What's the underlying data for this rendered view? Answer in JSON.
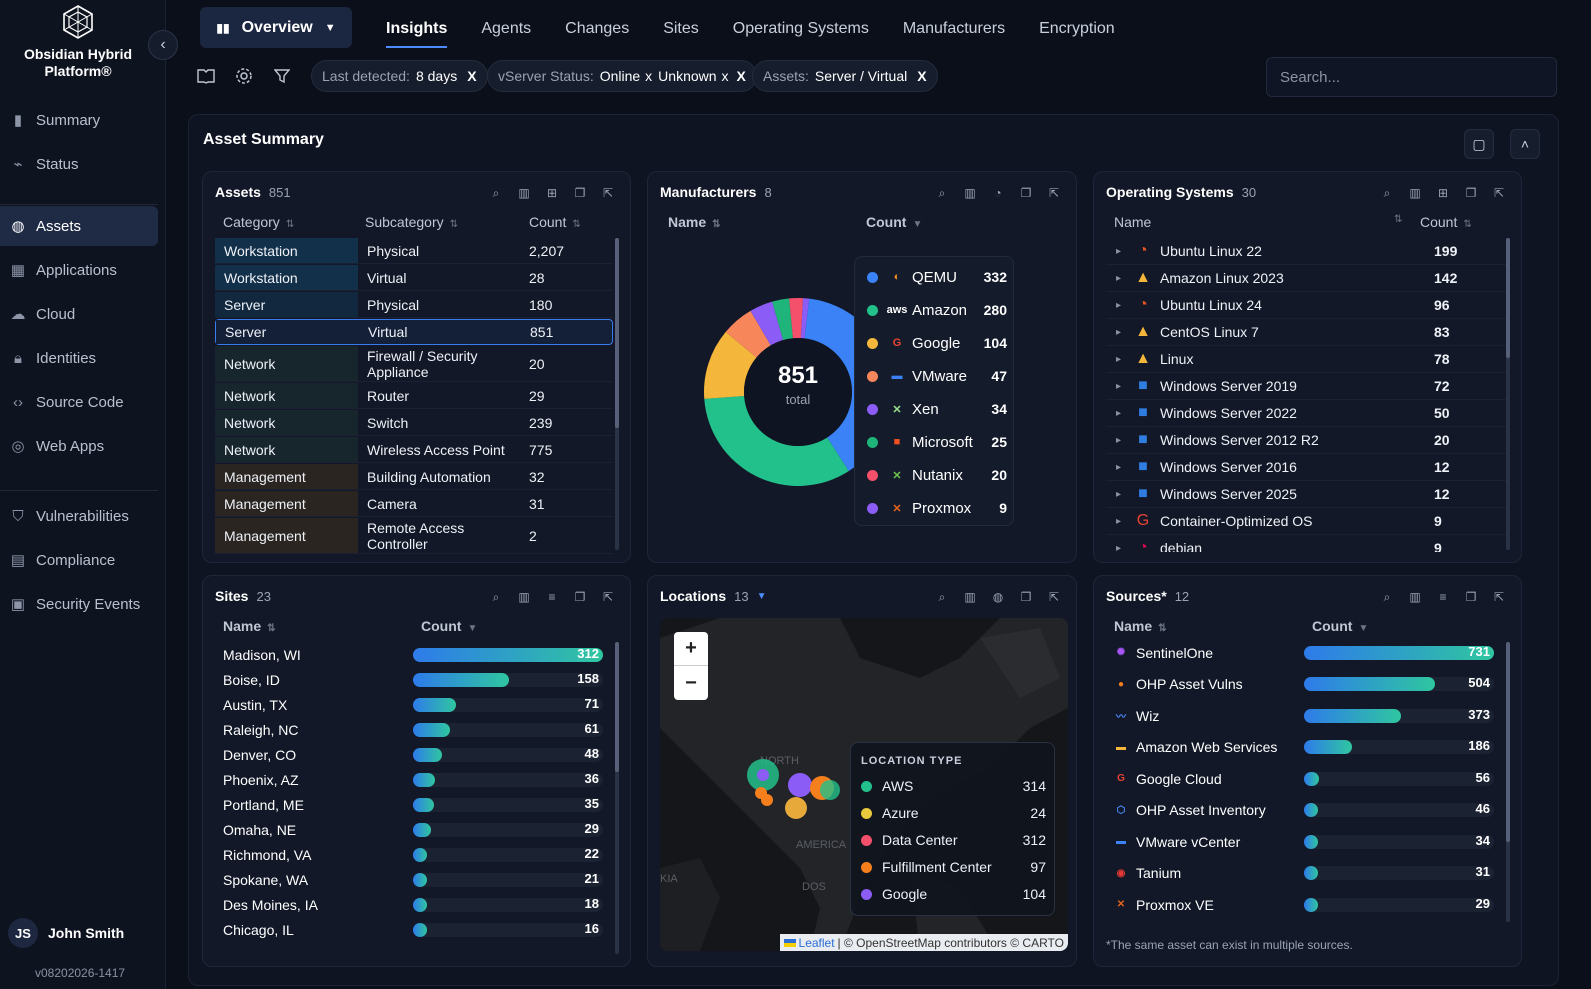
{
  "brand": {
    "name_line1": "Obsidian Hybrid",
    "name_line2": "Platform®"
  },
  "nav": {
    "top": [
      {
        "id": "summary",
        "label": "Summary",
        "icon": "bar-chart-icon"
      },
      {
        "id": "status",
        "label": "Status",
        "icon": "pulse-icon"
      }
    ],
    "middle": [
      {
        "id": "assets",
        "label": "Assets",
        "icon": "globe-icon",
        "active": true
      },
      {
        "id": "applications",
        "label": "Applications",
        "icon": "grid-icon"
      },
      {
        "id": "cloud",
        "label": "Cloud",
        "icon": "cloud-icon"
      },
      {
        "id": "identities",
        "label": "Identities",
        "icon": "lock-icon"
      },
      {
        "id": "source-code",
        "label": "Source Code",
        "icon": "code-icon"
      },
      {
        "id": "web-apps",
        "label": "Web Apps",
        "icon": "web-icon"
      }
    ],
    "bottom": [
      {
        "id": "vulnerabilities",
        "label": "Vulnerabilities",
        "icon": "shield-icon"
      },
      {
        "id": "compliance",
        "label": "Compliance",
        "icon": "document-icon"
      },
      {
        "id": "security-events",
        "label": "Security Events",
        "icon": "terminal-icon"
      }
    ]
  },
  "user": {
    "initials": "JS",
    "name": "John Smith",
    "version": "v08202026-1417"
  },
  "header": {
    "overview_label": "Overview",
    "tabs": [
      "Insights",
      "Agents",
      "Changes",
      "Sites",
      "Operating Systems",
      "Manufacturers",
      "Encryption"
    ],
    "active_tab": "Insights",
    "filters": {
      "last_detected": {
        "label": "Last detected:",
        "value": "8 days"
      },
      "vserver": {
        "label": "vServer Status:",
        "values": [
          "Online",
          "Unknown"
        ]
      },
      "assets": {
        "label": "Assets:",
        "value": "Server / Virtual"
      },
      "remove": "X",
      "remove_small": "x"
    },
    "search_placeholder": "Search..."
  },
  "panel": {
    "title": "Asset Summary"
  },
  "assets": {
    "title": "Assets",
    "count": "851",
    "headers": {
      "category": "Category",
      "subcategory": "Subcategory",
      "count": "Count"
    },
    "rows": [
      {
        "category": "Workstation",
        "sub": "Physical",
        "count": "2,207",
        "tone": "#13304a"
      },
      {
        "category": "Workstation",
        "sub": "Virtual",
        "count": "28",
        "tone": "#13304a"
      },
      {
        "category": "Server",
        "sub": "Physical",
        "count": "180",
        "tone": "#12283f"
      },
      {
        "category": "Server",
        "sub": "Virtual",
        "count": "851",
        "tone": "#142038",
        "selected": true
      },
      {
        "category": "Network",
        "sub": "Firewall / Security Appliance",
        "count": "20",
        "tone": "#17262d"
      },
      {
        "category": "Network",
        "sub": "Router",
        "count": "29",
        "tone": "#17262d"
      },
      {
        "category": "Network",
        "sub": "Switch",
        "count": "239",
        "tone": "#17262d"
      },
      {
        "category": "Network",
        "sub": "Wireless Access Point",
        "count": "775",
        "tone": "#17262d"
      },
      {
        "category": "Management",
        "sub": "Building Automation",
        "count": "32",
        "tone": "#2a2520"
      },
      {
        "category": "Management",
        "sub": "Camera",
        "count": "31",
        "tone": "#2a2520"
      },
      {
        "category": "Management",
        "sub": "Remote Access Controller",
        "count": "2",
        "tone": "#2a2520"
      }
    ]
  },
  "manufacturers": {
    "title": "Manufacturers",
    "count": "8",
    "headers": {
      "name": "Name",
      "count": "Count"
    },
    "total": "851",
    "total_label": "total",
    "items": [
      {
        "name": "QEMU",
        "value": 332,
        "color": "#3b82f6",
        "icon": "qemu-icon",
        "glyph": "◐",
        "glyph_color": "#f08a24"
      },
      {
        "name": "Amazon",
        "value": 280,
        "color": "#22c08a",
        "icon": "aws-icon",
        "glyph": "aws",
        "glyph_color": "#ffffff"
      },
      {
        "name": "Google",
        "value": 104,
        "color": "#f5b73b",
        "icon": "google-icon",
        "glyph": "G",
        "glyph_color": "#ea4335"
      },
      {
        "name": "VMware",
        "value": 47,
        "color": "#f7875a",
        "icon": "vmware-icon",
        "glyph": "▬",
        "glyph_color": "#3b82f6"
      },
      {
        "name": "Xen",
        "value": 34,
        "color": "#8b5cf6",
        "icon": "xen-icon",
        "glyph": "✕",
        "glyph_color": "#9be28b"
      },
      {
        "name": "Microsoft",
        "value": 25,
        "color": "#1fb57a",
        "icon": "microsoft-icon",
        "glyph": "■",
        "glyph_color": "#f25022"
      },
      {
        "name": "Nutanix",
        "value": 20,
        "color": "#f4506b",
        "icon": "nutanix-icon",
        "glyph": "✕",
        "glyph_color": "#6ec34a"
      },
      {
        "name": "Proxmox",
        "value": 9,
        "color": "#8b5cf6",
        "icon": "proxmox-icon",
        "glyph": "✕",
        "glyph_color": "#e8641c"
      }
    ]
  },
  "os": {
    "title": "Operating Systems",
    "count": "30",
    "headers": {
      "name": "Name",
      "count": "Count"
    },
    "rows": [
      {
        "name": "Ubuntu Linux 22",
        "count": "199",
        "icon": "ubuntu-icon"
      },
      {
        "name": "Amazon Linux 2023",
        "count": "142",
        "icon": "linux-icon"
      },
      {
        "name": "Ubuntu Linux 24",
        "count": "96",
        "icon": "ubuntu-icon"
      },
      {
        "name": "CentOS Linux 7",
        "count": "83",
        "icon": "linux-icon"
      },
      {
        "name": "Linux",
        "count": "78",
        "icon": "linux-icon"
      },
      {
        "name": "Windows Server 2019",
        "count": "72",
        "icon": "windows-icon"
      },
      {
        "name": "Windows Server 2022",
        "count": "50",
        "icon": "windows-icon"
      },
      {
        "name": "Windows Server 2012 R2",
        "count": "20",
        "icon": "windows-icon"
      },
      {
        "name": "Windows Server 2016",
        "count": "12",
        "icon": "windows-icon"
      },
      {
        "name": "Windows Server 2025",
        "count": "12",
        "icon": "windows-icon"
      },
      {
        "name": "Container-Optimized OS",
        "count": "9",
        "icon": "google-icon"
      },
      {
        "name": "debian",
        "count": "9",
        "icon": "debian-icon"
      }
    ]
  },
  "sites": {
    "title": "Sites",
    "count": "23",
    "headers": {
      "name": "Name",
      "count": "Count"
    },
    "max": 312,
    "rows": [
      {
        "name": "Madison, WI",
        "value": 312
      },
      {
        "name": "Boise, ID",
        "value": 158
      },
      {
        "name": "Austin, TX",
        "value": 71
      },
      {
        "name": "Raleigh, NC",
        "value": 61
      },
      {
        "name": "Denver, CO",
        "value": 48
      },
      {
        "name": "Phoenix, AZ",
        "value": 36
      },
      {
        "name": "Portland, ME",
        "value": 35
      },
      {
        "name": "Omaha, NE",
        "value": 29
      },
      {
        "name": "Richmond, VA",
        "value": 22
      },
      {
        "name": "Spokane, WA",
        "value": 21
      },
      {
        "name": "Des Moines, IA",
        "value": 18
      },
      {
        "name": "Chicago, IL",
        "value": 16
      }
    ]
  },
  "locations": {
    "title": "Locations",
    "count": "13",
    "legend_title": "LOCATION TYPE",
    "types": [
      {
        "name": "AWS",
        "count": "314",
        "color": "#22c08a"
      },
      {
        "name": "Azure",
        "count": "24",
        "color": "#e8c93b"
      },
      {
        "name": "Data Center",
        "count": "312",
        "color": "#f4506b"
      },
      {
        "name": "Fulfillment Center",
        "count": "97",
        "color": "#f47f1c"
      },
      {
        "name": "Google",
        "count": "104",
        "color": "#8b5cf6"
      }
    ],
    "map_labels": [
      "NORTH",
      "AMERICA",
      "KIA",
      "DOS"
    ],
    "zoom_in": "+",
    "zoom_out": "−",
    "attribution": {
      "leaflet": "Leaflet",
      "rest": "| © OpenStreetMap contributors © CARTO"
    }
  },
  "sources": {
    "title": "Sources*",
    "count": "12",
    "headers": {
      "name": "Name",
      "count": "Count"
    },
    "max": 731,
    "rows": [
      {
        "name": "SentinelOne",
        "value": 731,
        "icon": "sentinelone-icon",
        "glyph": "✺",
        "color": "#a855f7"
      },
      {
        "name": "OHP Asset Vulns",
        "value": 504,
        "icon": "pin-icon",
        "glyph": "●",
        "color": "#f47f1c"
      },
      {
        "name": "Wiz",
        "value": 373,
        "icon": "wiz-icon",
        "glyph": "〰",
        "color": "#4c8cff"
      },
      {
        "name": "Amazon Web Services",
        "value": 186,
        "icon": "aws-icon",
        "glyph": "▬",
        "color": "#f5b73b"
      },
      {
        "name": "Google Cloud",
        "value": 56,
        "icon": "google-icon",
        "glyph": "G",
        "color": "#ea4335"
      },
      {
        "name": "OHP Asset Inventory",
        "value": 46,
        "icon": "hexagon-icon",
        "glyph": "⬡",
        "color": "#4c8cff"
      },
      {
        "name": "VMware vCenter",
        "value": 34,
        "icon": "vmware-icon",
        "glyph": "▬",
        "color": "#3b82f6"
      },
      {
        "name": "Tanium",
        "value": 31,
        "icon": "tanium-icon",
        "glyph": "◉",
        "color": "#e53935"
      },
      {
        "name": "Proxmox VE",
        "value": 29,
        "icon": "proxmox-icon",
        "glyph": "✕",
        "color": "#e8641c"
      }
    ],
    "footnote": "*The same asset can exist in multiple sources."
  }
}
